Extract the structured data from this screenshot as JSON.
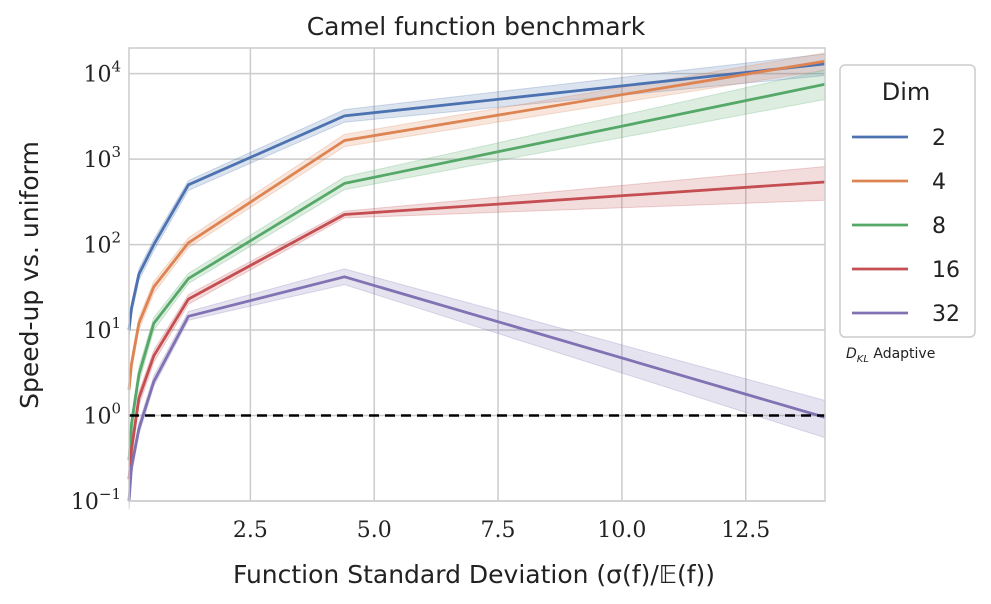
{
  "chart_data": {
    "type": "line",
    "title": "Camel function benchmark",
    "xlabel": "Function Standard Deviation (σ(f)/𝔼(f))",
    "ylabel": "Speed-up vs. uniform",
    "xlim": [
      0.05,
      14.1
    ],
    "ylim_log10": [
      -1,
      4.3
    ],
    "x_ticks": [
      2.5,
      5.0,
      7.5,
      10.0,
      12.5
    ],
    "x_tick_labels": [
      "2.5",
      "5.0",
      "7.5",
      "10.0",
      "12.5"
    ],
    "y_ticks_log10": [
      -1,
      0,
      1,
      2,
      3,
      4
    ],
    "y_tick_bases": [
      "10",
      "10",
      "10",
      "10",
      "10",
      "10"
    ],
    "y_tick_exps": [
      "−1",
      "0",
      "1",
      "2",
      "3",
      "4"
    ],
    "legend_title": "Dim",
    "legend_note": "D_KL Adaptive",
    "legend_note_main": "D",
    "legend_note_sub": "KL",
    "legend_note_rest": " Adaptive",
    "baseline": {
      "y": 1,
      "style": "dashed",
      "color": "#000000"
    },
    "series": [
      {
        "name": "2",
        "color": "#4c72b0",
        "x": [
          0.05,
          0.1,
          0.25,
          0.55,
          1.25,
          4.4,
          14.1
        ],
        "y": [
          10,
          18,
          45,
          100,
          500,
          3200,
          13000
        ],
        "lower": [
          8,
          15,
          38,
          85,
          430,
          2700,
          9500
        ],
        "upper": [
          12,
          21,
          52,
          115,
          560,
          3800,
          17000
        ]
      },
      {
        "name": "4",
        "color": "#dd8452",
        "x": [
          0.05,
          0.1,
          0.25,
          0.55,
          1.25,
          4.4,
          14.1
        ],
        "y": [
          2,
          4,
          12,
          32,
          105,
          1650,
          14000
        ],
        "lower": [
          1.6,
          3.3,
          10,
          27,
          92,
          1400,
          11000
        ],
        "upper": [
          2.5,
          4.8,
          14,
          37,
          120,
          1950,
          17500
        ]
      },
      {
        "name": "8",
        "color": "#55a868",
        "x": [
          0.05,
          0.1,
          0.25,
          0.55,
          1.25,
          4.4,
          14.1
        ],
        "y": [
          0.3,
          0.8,
          3,
          12,
          40,
          520,
          7500
        ],
        "lower": [
          0.22,
          0.6,
          2.4,
          10,
          35,
          440,
          5000
        ],
        "upper": [
          0.4,
          1,
          3.7,
          14,
          46,
          620,
          11000
        ]
      },
      {
        "name": "16",
        "color": "#c44e52",
        "x": [
          0.05,
          0.1,
          0.25,
          0.55,
          1.25,
          4.4,
          14.1
        ],
        "y": [
          0.18,
          0.4,
          1.6,
          5,
          23,
          225,
          540
        ],
        "lower": [
          0.13,
          0.3,
          1.3,
          4.2,
          20,
          205,
          330
        ],
        "upper": [
          0.24,
          0.52,
          1.9,
          5.8,
          26,
          245,
          820
        ]
      },
      {
        "name": "32",
        "color": "#8172b3",
        "x": [
          0.05,
          0.1,
          0.25,
          0.55,
          1.25,
          4.4,
          14.1
        ],
        "y": [
          0.1,
          0.25,
          0.7,
          2.5,
          14.5,
          42,
          0.95
        ],
        "lower": [
          0.08,
          0.2,
          0.6,
          2.2,
          13,
          34,
          0.55
        ],
        "upper": [
          0.13,
          0.3,
          0.82,
          2.9,
          16.5,
          52,
          1.5
        ]
      }
    ]
  }
}
